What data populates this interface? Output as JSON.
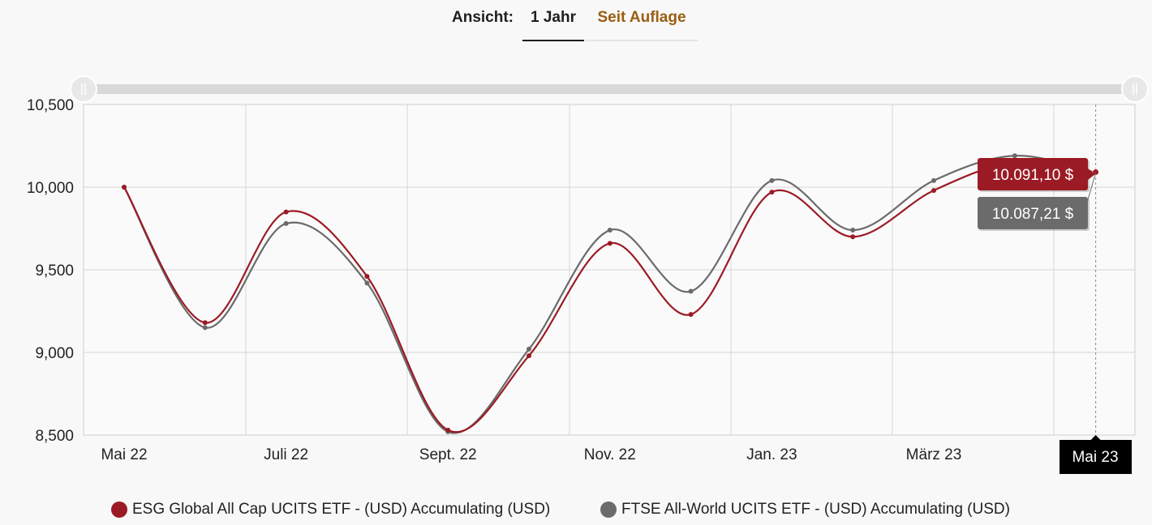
{
  "view": {
    "label": "Ansicht:",
    "options": [
      "1 Jahr",
      "Seit Auflage"
    ],
    "active": "1 Jahr"
  },
  "colors": {
    "series_1": "#9b1b25",
    "series_2": "#6b6b6b",
    "accent": "#9b5d12",
    "navigator": "#d9d9d9",
    "axis_badge": "#000000"
  },
  "chart_data": {
    "type": "line",
    "title": "",
    "xlabel": "",
    "ylabel": "",
    "ylim": [
      8500,
      10500
    ],
    "yticks": [
      8500,
      9000,
      9500,
      10000,
      10500
    ],
    "ytick_labels": [
      "8,500",
      "9,000",
      "9,500",
      "10,000",
      "10,500"
    ],
    "x_tick_labels": [
      "Mai 22",
      "Juli 22",
      "Sept. 22",
      "Nov. 22",
      "Jan. 23",
      "März 23"
    ],
    "x_points": [
      "2022-05",
      "2022-06",
      "2022-07",
      "2022-08",
      "2022-09",
      "2022-10",
      "2022-11",
      "2022-12",
      "2023-01",
      "2023-02",
      "2023-03",
      "2023-04",
      "2023-05"
    ],
    "series": [
      {
        "name": "ESG Global All Cap UCITS ETF - (USD) Accumulating (USD)",
        "color": "#9b1b25",
        "values": [
          10000,
          9180,
          9850,
          9460,
          8530,
          8980,
          9660,
          9230,
          9970,
          9700,
          9980,
          10150,
          10091.1
        ]
      },
      {
        "name": "FTSE All-World UCITS ETF - (USD) Accumulating (USD)",
        "color": "#6b6b6b",
        "values": [
          10000,
          9150,
          9780,
          9420,
          8520,
          9020,
          9740,
          9370,
          10040,
          9740,
          10040,
          10190,
          10087.21
        ]
      }
    ],
    "tooltip": {
      "x_label": "Mai 23",
      "values": [
        "10.091,10 $",
        "10.087,21 $"
      ]
    },
    "grid": true,
    "legend": "bottom"
  }
}
